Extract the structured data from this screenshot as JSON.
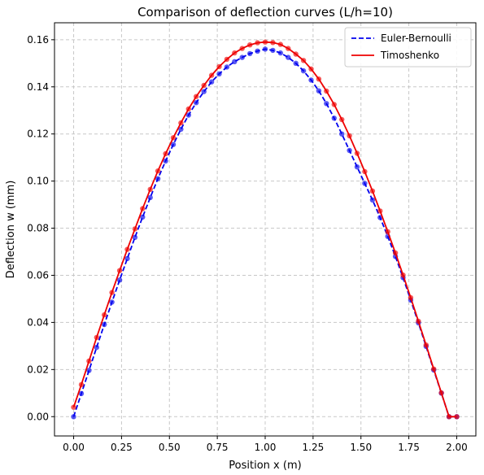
{
  "chart_data": {
    "type": "line",
    "title": "Comparison of deflection curves (L/h=10)",
    "xlabel": "Position x (m)",
    "ylabel": "Deflection w (mm)",
    "xlim": [
      -0.1,
      2.1
    ],
    "ylim": [
      -0.0082,
      0.1672
    ],
    "xticks": [
      "0.00",
      "0.25",
      "0.50",
      "0.75",
      "1.00",
      "1.25",
      "1.50",
      "1.75",
      "2.00"
    ],
    "yticks": [
      "0.00",
      "0.02",
      "0.04",
      "0.06",
      "0.08",
      "0.10",
      "0.12",
      "0.14",
      "0.16"
    ],
    "grid": true,
    "legend_position": "top-right",
    "series": [
      {
        "name": "Euler-Bernoulli",
        "color": "#0000ee",
        "line_style": "dashed",
        "x": [
          0.0,
          0.04,
          0.08,
          0.12,
          0.16,
          0.2,
          0.24,
          0.28,
          0.32,
          0.36,
          0.4,
          0.44,
          0.48,
          0.52,
          0.56,
          0.6,
          0.64,
          0.68,
          0.72,
          0.76,
          0.8,
          0.84,
          0.88,
          0.92,
          0.96,
          1.0,
          1.04,
          1.08,
          1.12,
          1.16,
          1.2,
          1.24,
          1.28,
          1.32,
          1.36,
          1.4,
          1.44,
          1.48,
          1.52,
          1.56,
          1.6,
          1.64,
          1.68,
          1.72,
          1.76,
          1.8,
          1.84,
          1.88,
          1.92,
          1.96,
          2.0
        ],
        "y": [
          0.0,
          0.0098,
          0.0196,
          0.0294,
          0.0391,
          0.0486,
          0.058,
          0.0671,
          0.0761,
          0.0847,
          0.093,
          0.101,
          0.1085,
          0.1155,
          0.122,
          0.128,
          0.1333,
          0.138,
          0.1421,
          0.1455,
          0.1484,
          0.1507,
          0.1525,
          0.1541,
          0.1552,
          0.156,
          0.1555,
          0.1544,
          0.1525,
          0.15,
          0.1468,
          0.1429,
          0.1383,
          0.1329,
          0.1267,
          0.12,
          0.113,
          0.106,
          0.099,
          0.092,
          0.0845,
          0.0765,
          0.068,
          0.059,
          0.0495,
          0.0398,
          0.0298,
          0.0198,
          0.01,
          0.0,
          0.0
        ]
      },
      {
        "name": "Timoshenko",
        "color": "#ee0000",
        "line_style": "solid",
        "x": [
          0.0,
          0.04,
          0.08,
          0.12,
          0.16,
          0.2,
          0.24,
          0.28,
          0.32,
          0.36,
          0.4,
          0.44,
          0.48,
          0.52,
          0.56,
          0.6,
          0.64,
          0.68,
          0.72,
          0.76,
          0.8,
          0.84,
          0.88,
          0.92,
          0.96,
          1.0,
          1.04,
          1.08,
          1.12,
          1.16,
          1.2,
          1.24,
          1.28,
          1.32,
          1.36,
          1.4,
          1.44,
          1.48,
          1.52,
          1.56,
          1.6,
          1.64,
          1.68,
          1.72,
          1.76,
          1.8,
          1.84,
          1.88,
          1.92,
          1.96,
          2.0
        ],
        "y": [
          0.004,
          0.0136,
          0.0236,
          0.0336,
          0.0432,
          0.0527,
          0.062,
          0.071,
          0.0797,
          0.0883,
          0.0965,
          0.1043,
          0.1116,
          0.1184,
          0.1247,
          0.1306,
          0.1359,
          0.1406,
          0.1449,
          0.1486,
          0.1517,
          0.1544,
          0.1563,
          0.1578,
          0.1587,
          0.159,
          0.1588,
          0.158,
          0.1563,
          0.1539,
          0.1512,
          0.1476,
          0.1433,
          0.1382,
          0.1325,
          0.1261,
          0.1192,
          0.1118,
          0.104,
          0.0958,
          0.0873,
          0.0785,
          0.0695,
          0.0601,
          0.0505,
          0.0405,
          0.0304,
          0.0202,
          0.0101,
          0.0,
          0.0
        ]
      }
    ]
  }
}
